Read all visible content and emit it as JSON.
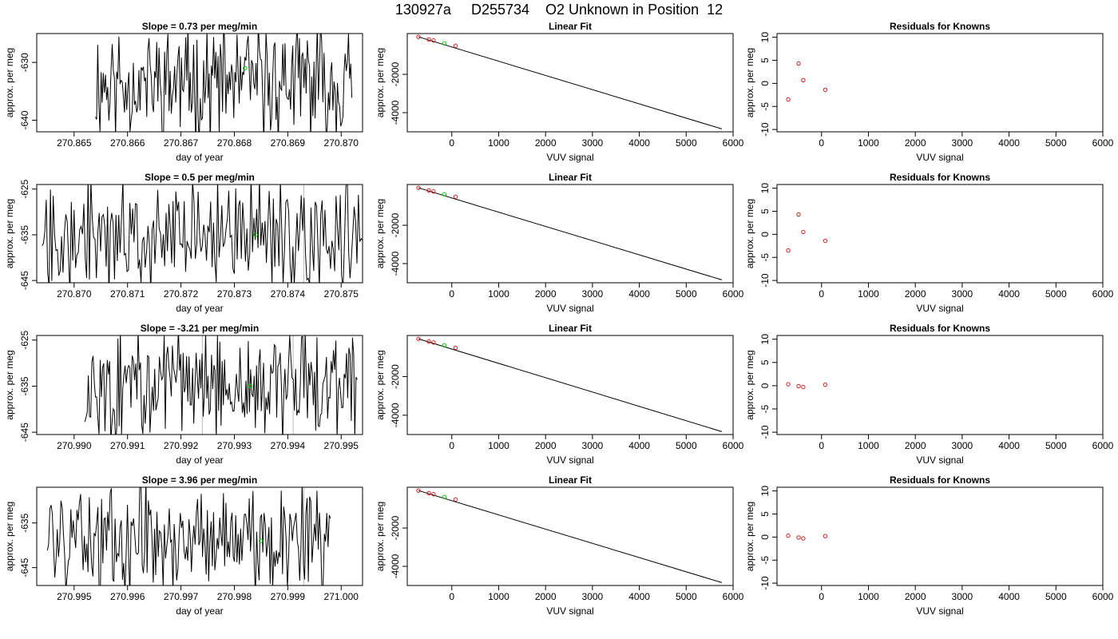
{
  "page_title": "130927a     D255734    O2 Unknown in Position  12",
  "chart_data": [
    {
      "type": "line",
      "row": 0,
      "col": 0,
      "title": "Slope =  0.73  per meg/min",
      "xlabel": "day of year",
      "ylabel": "approx. per meg",
      "xlim": [
        270.8643,
        270.8704
      ],
      "ylim": [
        -642,
        -625
      ],
      "xticks": [
        "270.865",
        "270.866",
        "270.867",
        "270.868",
        "270.869",
        "270.870"
      ],
      "xtick_values": [
        270.865,
        270.866,
        270.867,
        270.868,
        270.869,
        270.87
      ],
      "yticks": [
        "-640",
        "-630"
      ],
      "ytick_values": [
        -640,
        -630
      ],
      "trace_x_range": [
        270.8654,
        270.8702
      ],
      "trace_min": -642,
      "trace_max": -625,
      "seed": 11,
      "marker_x": 270.8682,
      "marker_y": -631,
      "marker_color": "#00cc00",
      "vlines": []
    },
    {
      "type": "scatter",
      "row": 0,
      "col": 1,
      "title": "Linear Fit",
      "xlabel": "VUV signal",
      "ylabel": "approx. per meg",
      "xlim": [
        -950,
        6000
      ],
      "ylim": [
        -5000,
        130
      ],
      "xticks": [
        "0",
        "1000",
        "2000",
        "3000",
        "4000",
        "5000",
        "6000"
      ],
      "xtick_values": [
        0,
        1000,
        2000,
        3000,
        4000,
        5000,
        6000
      ],
      "yticks": [
        "-4000",
        "-2000"
      ],
      "ytick_values": [
        -4000,
        -2000
      ],
      "points": [
        {
          "x": -710,
          "y": -45
        },
        {
          "x": -490,
          "y": -180
        },
        {
          "x": -390,
          "y": -235
        },
        {
          "x": 80,
          "y": -510
        }
      ],
      "unknown_point": {
        "x": -160,
        "y": -380
      },
      "fit_line": {
        "x0": -710,
        "y0": -45,
        "x1": 5760,
        "y1": -4850
      },
      "point_color": "#cc2222",
      "unknown_color": "#00cc00"
    },
    {
      "type": "scatter",
      "row": 0,
      "col": 2,
      "title": "Residuals for Knowns",
      "xlabel": "VUV signal",
      "ylabel": "approx. per meg",
      "xlim": [
        -950,
        6000
      ],
      "ylim": [
        -10.5,
        10.8
      ],
      "xticks": [
        "0",
        "1000",
        "2000",
        "3000",
        "4000",
        "5000",
        "6000"
      ],
      "xtick_values": [
        0,
        1000,
        2000,
        3000,
        4000,
        5000,
        6000
      ],
      "yticks": [
        "-10",
        "-5",
        "0",
        "5",
        "10"
      ],
      "ytick_values": [
        -10,
        -5,
        0,
        5,
        10
      ],
      "points": [
        {
          "x": -710,
          "y": -3.5
        },
        {
          "x": -490,
          "y": 4.3
        },
        {
          "x": -390,
          "y": 0.7
        },
        {
          "x": 80,
          "y": -1.4
        }
      ],
      "point_color": "#cc2222"
    },
    {
      "type": "line",
      "row": 1,
      "col": 0,
      "title": "Slope =  0.5  per meg/min",
      "xlabel": "day of year",
      "ylabel": "approx. per meg",
      "xlim": [
        270.8693,
        270.8754
      ],
      "ylim": [
        -645.5,
        -624
      ],
      "xticks": [
        "270.870",
        "270.871",
        "270.872",
        "270.873",
        "270.874",
        "270.875"
      ],
      "xtick_values": [
        270.87,
        270.871,
        270.872,
        270.873,
        270.874,
        270.875
      ],
      "yticks": [
        "-645",
        "-635",
        "-625"
      ],
      "ytick_values": [
        -645,
        -635,
        -625
      ],
      "trace_x_range": [
        270.8694,
        270.8754
      ],
      "trace_min": -646,
      "trace_max": -624,
      "seed": 27,
      "marker_x": 270.8734,
      "marker_y": -635,
      "marker_color": "#00cc00",
      "vlines": [
        270.8743
      ]
    },
    {
      "type": "scatter",
      "row": 1,
      "col": 1,
      "title": "Linear Fit",
      "xlabel": "VUV signal",
      "ylabel": "approx. per meg",
      "xlim": [
        -950,
        6000
      ],
      "ylim": [
        -5000,
        130
      ],
      "xticks": [
        "0",
        "1000",
        "2000",
        "3000",
        "4000",
        "5000",
        "6000"
      ],
      "xtick_values": [
        0,
        1000,
        2000,
        3000,
        4000,
        5000,
        6000
      ],
      "yticks": [
        "-4000",
        "-2000"
      ],
      "ytick_values": [
        -4000,
        -2000
      ],
      "points": [
        {
          "x": -710,
          "y": -45
        },
        {
          "x": -490,
          "y": -180
        },
        {
          "x": -390,
          "y": -235
        },
        {
          "x": 80,
          "y": -510
        }
      ],
      "unknown_point": {
        "x": -160,
        "y": -380
      },
      "fit_line": {
        "x0": -710,
        "y0": -45,
        "x1": 5760,
        "y1": -4850
      },
      "point_color": "#cc2222",
      "unknown_color": "#00cc00"
    },
    {
      "type": "scatter",
      "row": 1,
      "col": 2,
      "title": "Residuals for Knowns",
      "xlabel": "VUV signal",
      "ylabel": "approx. per meg",
      "xlim": [
        -950,
        6000
      ],
      "ylim": [
        -10.5,
        10.8
      ],
      "xticks": [
        "0",
        "1000",
        "2000",
        "3000",
        "4000",
        "5000",
        "6000"
      ],
      "xtick_values": [
        0,
        1000,
        2000,
        3000,
        4000,
        5000,
        6000
      ],
      "yticks": [
        "-10",
        "-5",
        "0",
        "5",
        "10"
      ],
      "ytick_values": [
        -10,
        -5,
        0,
        5,
        10
      ],
      "points": [
        {
          "x": -710,
          "y": -3.5
        },
        {
          "x": -490,
          "y": 4.3
        },
        {
          "x": -390,
          "y": 0.5
        },
        {
          "x": 80,
          "y": -1.4
        }
      ],
      "point_color": "#cc2222"
    },
    {
      "type": "line",
      "row": 2,
      "col": 0,
      "title": "Slope =  -3.21  per meg/min",
      "xlabel": "day of year",
      "ylabel": "approx. per meg",
      "xlim": [
        270.9893,
        270.9954
      ],
      "ylim": [
        -645.5,
        -624
      ],
      "xticks": [
        "270.990",
        "270.991",
        "270.992",
        "270.993",
        "270.994",
        "270.995"
      ],
      "xtick_values": [
        270.99,
        270.991,
        270.992,
        270.993,
        270.994,
        270.995
      ],
      "yticks": [
        "-645",
        "-635",
        "-625"
      ],
      "ytick_values": [
        -645,
        -635,
        -625
      ],
      "trace_x_range": [
        270.9902,
        270.9953
      ],
      "trace_min": -646,
      "trace_max": -624,
      "seed": 43,
      "marker_x": 270.9933,
      "marker_y": -635,
      "marker_color": "#00cc00",
      "vlines": [
        270.9924,
        270.9941
      ]
    },
    {
      "type": "scatter",
      "row": 2,
      "col": 1,
      "title": "Linear Fit",
      "xlabel": "VUV signal",
      "ylabel": "approx. per meg",
      "xlim": [
        -950,
        6000
      ],
      "ylim": [
        -5000,
        130
      ],
      "xticks": [
        "0",
        "1000",
        "2000",
        "3000",
        "4000",
        "5000",
        "6000"
      ],
      "xtick_values": [
        0,
        1000,
        2000,
        3000,
        4000,
        5000,
        6000
      ],
      "yticks": [
        "-4000",
        "-2000"
      ],
      "ytick_values": [
        -4000,
        -2000
      ],
      "points": [
        {
          "x": -710,
          "y": -45
        },
        {
          "x": -490,
          "y": -180
        },
        {
          "x": -390,
          "y": -235
        },
        {
          "x": 80,
          "y": -510
        }
      ],
      "unknown_point": {
        "x": -160,
        "y": -380
      },
      "fit_line": {
        "x0": -710,
        "y0": -45,
        "x1": 5760,
        "y1": -4850
      },
      "point_color": "#cc2222",
      "unknown_color": "#00cc00"
    },
    {
      "type": "scatter",
      "row": 2,
      "col": 2,
      "title": "Residuals for Knowns",
      "xlabel": "VUV signal",
      "ylabel": "approx. per meg",
      "xlim": [
        -950,
        6000
      ],
      "ylim": [
        -10.5,
        10.8
      ],
      "xticks": [
        "0",
        "1000",
        "2000",
        "3000",
        "4000",
        "5000",
        "6000"
      ],
      "xtick_values": [
        0,
        1000,
        2000,
        3000,
        4000,
        5000,
        6000
      ],
      "yticks": [
        "-10",
        "-5",
        "0",
        "5",
        "10"
      ],
      "ytick_values": [
        -10,
        -5,
        0,
        5,
        10
      ],
      "points": [
        {
          "x": -710,
          "y": 0.3
        },
        {
          "x": -490,
          "y": -0.1
        },
        {
          "x": -390,
          "y": -0.3
        },
        {
          "x": 80,
          "y": 0.2
        }
      ],
      "point_color": "#cc2222"
    },
    {
      "type": "line",
      "row": 3,
      "col": 0,
      "title": "Slope =  3.96  per meg/min",
      "xlabel": "day of year",
      "ylabel": "approx. per meg",
      "xlim": [
        270.9943,
        271.0004
      ],
      "ylim": [
        -649,
        -627
      ],
      "xticks": [
        "270.995",
        "270.996",
        "270.997",
        "270.998",
        "270.999",
        "271.000"
      ],
      "xtick_values": [
        270.995,
        270.996,
        270.997,
        270.998,
        270.999,
        271.0
      ],
      "yticks": [
        "-645",
        "-635"
      ],
      "ytick_values": [
        -645,
        -635
      ],
      "trace_x_range": [
        270.9945,
        270.9998
      ],
      "trace_min": -649,
      "trace_max": -627,
      "seed": 59,
      "marker_x": 270.9985,
      "marker_y": -639,
      "marker_color": "#00cc00",
      "vlines": [
        270.9993
      ]
    },
    {
      "type": "scatter",
      "row": 3,
      "col": 1,
      "title": "Linear Fit",
      "xlabel": "VUV signal",
      "ylabel": "approx. per meg",
      "xlim": [
        -950,
        6000
      ],
      "ylim": [
        -5000,
        130
      ],
      "xticks": [
        "0",
        "1000",
        "2000",
        "3000",
        "4000",
        "5000",
        "6000"
      ],
      "xtick_values": [
        0,
        1000,
        2000,
        3000,
        4000,
        5000,
        6000
      ],
      "yticks": [
        "-4000",
        "-2000"
      ],
      "ytick_values": [
        -4000,
        -2000
      ],
      "points": [
        {
          "x": -710,
          "y": -45
        },
        {
          "x": -490,
          "y": -180
        },
        {
          "x": -390,
          "y": -235
        },
        {
          "x": 80,
          "y": -510
        }
      ],
      "unknown_point": {
        "x": -160,
        "y": -380
      },
      "fit_line": {
        "x0": -710,
        "y0": -45,
        "x1": 5760,
        "y1": -4850
      },
      "point_color": "#cc2222",
      "unknown_color": "#00cc00"
    },
    {
      "type": "scatter",
      "row": 3,
      "col": 2,
      "title": "Residuals for Knowns",
      "xlabel": "VUV signal",
      "ylabel": "approx. per meg",
      "xlim": [
        -950,
        6000
      ],
      "ylim": [
        -10.5,
        10.8
      ],
      "xticks": [
        "0",
        "1000",
        "2000",
        "3000",
        "4000",
        "5000",
        "6000"
      ],
      "xtick_values": [
        0,
        1000,
        2000,
        3000,
        4000,
        5000,
        6000
      ],
      "yticks": [
        "-10",
        "-5",
        "0",
        "5",
        "10"
      ],
      "ytick_values": [
        -10,
        -5,
        0,
        5,
        10
      ],
      "points": [
        {
          "x": -710,
          "y": 0.3
        },
        {
          "x": -490,
          "y": -0.1
        },
        {
          "x": -390,
          "y": -0.3
        },
        {
          "x": 80,
          "y": 0.2
        }
      ],
      "point_color": "#cc2222"
    }
  ]
}
